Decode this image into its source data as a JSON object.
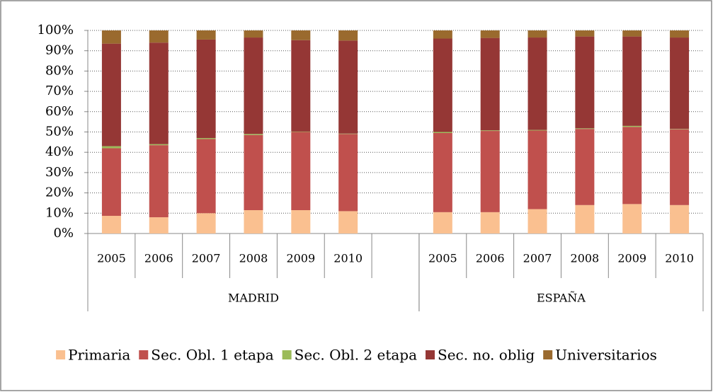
{
  "chart_data": {
    "type": "stacked_bar",
    "groups": [
      {
        "name": "MADRID",
        "categories": [
          "2005",
          "2006",
          "2007",
          "2008",
          "2009",
          "2010",
          null
        ]
      },
      {
        "name": "ESPAÑA",
        "categories": [
          "2005",
          "2006",
          "2007",
          "2008",
          "2009",
          "2010"
        ]
      }
    ],
    "series": [
      {
        "name": "Primaria",
        "color": "#fac090",
        "values": [
          8.7,
          8,
          10,
          11.5,
          11.5,
          11,
          null,
          10.5,
          10.5,
          12,
          14,
          14.5,
          14
        ]
      },
      {
        "name": "Sec. Obl. 1 etapa",
        "color": "#c0504d",
        "values": [
          33.3,
          35.5,
          36.5,
          37,
          38.5,
          38,
          null,
          39,
          40,
          38.7,
          37.5,
          38,
          37.3
        ]
      },
      {
        "name": "Sec. Obl. 2 etapa",
        "color": "#9bbb59",
        "values": [
          1,
          0.5,
          0.5,
          0.5,
          0.2,
          0.2,
          null,
          0.5,
          0.3,
          0.3,
          0.3,
          0.5,
          0.2
        ]
      },
      {
        "name": "Sec. no. oblig",
        "color": "#953735",
        "values": [
          50.5,
          50,
          48.5,
          47.5,
          45,
          45.8,
          null,
          46,
          45.5,
          45.5,
          45.2,
          44,
          45
        ]
      },
      {
        "name": "Universitarios",
        "color": "#9a6a2e",
        "values": [
          6.5,
          6,
          4.5,
          3.5,
          4.8,
          5,
          null,
          4,
          3.7,
          3.5,
          3,
          3,
          3.5
        ]
      }
    ],
    "ylim": [
      0,
      100
    ],
    "yticks": [
      {
        "value": 0,
        "label": "0%"
      },
      {
        "value": 10,
        "label": "10%"
      },
      {
        "value": 20,
        "label": "20%"
      },
      {
        "value": 30,
        "label": "30%"
      },
      {
        "value": 40,
        "label": "40%"
      },
      {
        "value": 50,
        "label": "50%"
      },
      {
        "value": 60,
        "label": "60%"
      },
      {
        "value": 70,
        "label": "70%"
      },
      {
        "value": 80,
        "label": "80%"
      },
      {
        "value": 90,
        "label": "90%"
      },
      {
        "value": 100,
        "label": "100%"
      }
    ],
    "grid": true,
    "legend": "bottom"
  }
}
